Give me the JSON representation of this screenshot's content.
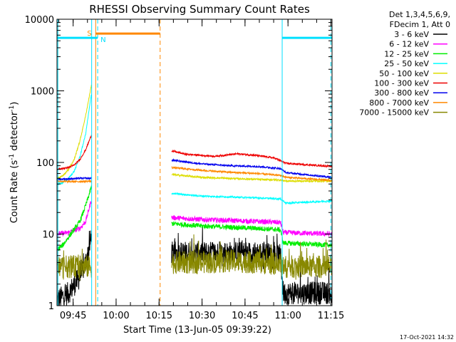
{
  "chart_data": {
    "type": "line",
    "title": "RHESSI Observing Summary Count Rates",
    "xlabel": "Start Time (13-Jun-05 09:39:22)",
    "ylabel_main": "Count Rate (s",
    "ylabel_sup1": "-1",
    "ylabel_mid": " detector",
    "ylabel_sup2": "-1",
    "ylabel_end": ")",
    "yscale": "log",
    "ylim": [
      1,
      10000
    ],
    "xlim_minutes": [
      0,
      96
    ],
    "x_ticks": [
      {
        "label": "09:45",
        "min": 5.63
      },
      {
        "label": "10:00",
        "min": 20.63
      },
      {
        "label": "10:15",
        "min": 35.63
      },
      {
        "label": "10:30",
        "min": 50.63
      },
      {
        "label": "10:45",
        "min": 65.63
      },
      {
        "label": "11:00",
        "min": 80.63
      },
      {
        "label": "11:15",
        "min": 95.63
      }
    ],
    "y_ticks": [
      {
        "label": "1",
        "value": 1
      },
      {
        "label": "10",
        "value": 10
      },
      {
        "label": "100",
        "value": 100
      },
      {
        "label": "1000",
        "value": 1000
      },
      {
        "label": "10000",
        "value": 10000
      }
    ],
    "legend": {
      "header1": "Det 1,3,4,5,6,9,",
      "header2": "FDecim 1, Att 0",
      "entries": [
        {
          "label": "3 - 6 keV",
          "color": "#000000"
        },
        {
          "label": "6 - 12 keV",
          "color": "#ff00ff"
        },
        {
          "label": "12 - 25 keV",
          "color": "#00ee00"
        },
        {
          "label": "25 - 50 keV",
          "color": "#00ffff"
        },
        {
          "label": "50 - 100 keV",
          "color": "#dddd00"
        },
        {
          "label": "100 - 300 keV",
          "color": "#ee0000"
        },
        {
          "label": "300 - 800 keV",
          "color": "#0000ee"
        },
        {
          "label": "800 - 7000 keV",
          "color": "#ff8800"
        },
        {
          "label": "7000 - 15000 keV",
          "color": "#888800"
        }
      ]
    },
    "annotations": {
      "saa_label": "S",
      "night_label": "N",
      "flag_value": 5500,
      "saa_flag": {
        "start_min": 13.5,
        "end_min": 36.0,
        "color": "#ff8800"
      },
      "night_flags": [
        {
          "start_min": 0,
          "end_min": 14.2,
          "color": "#00e0ff"
        },
        {
          "start_min": 78.6,
          "end_min": 96,
          "color": "#00e0ff"
        }
      ],
      "vlines": [
        {
          "min": 0.3,
          "style": "solid",
          "color": "#00e0ff"
        },
        {
          "min": 12.1,
          "style": "solid",
          "color": "#00e0ff"
        },
        {
          "min": 13.5,
          "style": "solid",
          "color": "#ff8800"
        },
        {
          "min": 14.2,
          "style": "dashed",
          "color": "#00e0ff"
        },
        {
          "min": 36.0,
          "style": "dashed",
          "color": "#ff8800"
        },
        {
          "min": 78.6,
          "style": "solid",
          "color": "#00e0ff"
        },
        {
          "min": 95.6,
          "style": "dashed",
          "color": "#00e0ff"
        }
      ]
    },
    "segments": [
      {
        "t_start": 0,
        "t_end": 12
      },
      {
        "t_start": 40,
        "t_end": 96
      }
    ],
    "series": [
      {
        "name": "3 - 6 keV",
        "color": "#000000",
        "seg1": {
          "t": [
            0,
            4,
            8,
            10,
            12
          ],
          "v": [
            1.2,
            1.5,
            2.5,
            4,
            9
          ]
        },
        "seg2": {
          "t": [
            40,
            50,
            60,
            70,
            78,
            79,
            96
          ],
          "v": [
            5.5,
            5.5,
            5.5,
            5.5,
            5.0,
            1.5,
            1.5
          ]
        }
      },
      {
        "name": "6 - 12 keV",
        "color": "#ff00ff",
        "seg1": {
          "t": [
            0,
            4,
            8,
            10,
            12
          ],
          "v": [
            10,
            10.5,
            12,
            15,
            30
          ]
        },
        "seg2": {
          "t": [
            40,
            50,
            60,
            70,
            78,
            79,
            96
          ],
          "v": [
            17,
            16,
            15.5,
            15,
            14.5,
            10.5,
            10
          ]
        }
      },
      {
        "name": "12 - 25 keV",
        "color": "#00ee00",
        "seg1": {
          "t": [
            0,
            2,
            4,
            8,
            10,
            12
          ],
          "v": [
            6,
            7,
            9,
            15,
            25,
            45
          ]
        },
        "seg2": {
          "t": [
            40,
            50,
            60,
            70,
            78,
            79,
            96
          ],
          "v": [
            14,
            13,
            12.5,
            12,
            11.5,
            7.5,
            7
          ]
        }
      },
      {
        "name": "25 - 50 keV",
        "color": "#00ffff",
        "seg1": {
          "t": [
            0,
            2,
            4,
            6,
            8,
            10,
            12
          ],
          "v": [
            50,
            52,
            60,
            75,
            120,
            250,
            900
          ]
        },
        "seg2": {
          "t": [
            40,
            50,
            60,
            70,
            78,
            80,
            96
          ],
          "v": [
            37,
            34,
            33,
            32,
            31,
            27,
            29
          ]
        }
      },
      {
        "name": "50 - 100 keV",
        "color": "#dddd00",
        "seg1": {
          "t": [
            0,
            2,
            4,
            6,
            8,
            10,
            12
          ],
          "v": [
            60,
            65,
            80,
            110,
            200,
            450,
            1200
          ]
        },
        "seg2": {
          "t": [
            40,
            50,
            60,
            70,
            78,
            80,
            96
          ],
          "v": [
            68,
            62,
            60,
            58,
            57,
            55,
            55
          ]
        }
      },
      {
        "name": "100 - 300 keV",
        "color": "#ee0000",
        "seg1": {
          "t": [
            0,
            2,
            4,
            6,
            8,
            10,
            12
          ],
          "v": [
            80,
            82,
            85,
            92,
            110,
            150,
            240
          ]
        },
        "seg2": {
          "t": [
            40,
            45,
            55,
            63,
            70,
            76,
            80,
            96
          ],
          "v": [
            145,
            130,
            122,
            132,
            125,
            115,
            97,
            88
          ]
        }
      },
      {
        "name": "300 - 800 keV",
        "color": "#0000ee",
        "seg1": {
          "t": [
            0,
            4,
            8,
            12
          ],
          "v": [
            58,
            59,
            60,
            60
          ]
        },
        "seg2": {
          "t": [
            40,
            50,
            60,
            70,
            78,
            80,
            96
          ],
          "v": [
            108,
            96,
            90,
            88,
            82,
            72,
            62
          ]
        }
      },
      {
        "name": "800 - 7000 keV",
        "color": "#ff8800",
        "seg1": {
          "t": [
            0,
            4,
            8,
            12
          ],
          "v": [
            55,
            54,
            54,
            55
          ]
        },
        "seg2": {
          "t": [
            40,
            50,
            60,
            70,
            78,
            80,
            96
          ],
          "v": [
            85,
            78,
            73,
            70,
            66,
            62,
            56
          ]
        }
      },
      {
        "name": "7000 - 15000 keV",
        "color": "#888800",
        "seg1": {
          "t": [
            0,
            4,
            8,
            12
          ],
          "v": [
            3.5,
            3.5,
            3.5,
            3.5
          ]
        },
        "seg2": {
          "t": [
            40,
            50,
            60,
            70,
            78,
            79,
            96
          ],
          "v": [
            4.0,
            4.0,
            4.2,
            4.0,
            3.8,
            3.5,
            3.5
          ]
        }
      }
    ],
    "timestamp": "17-Oct-2021 14:32"
  }
}
